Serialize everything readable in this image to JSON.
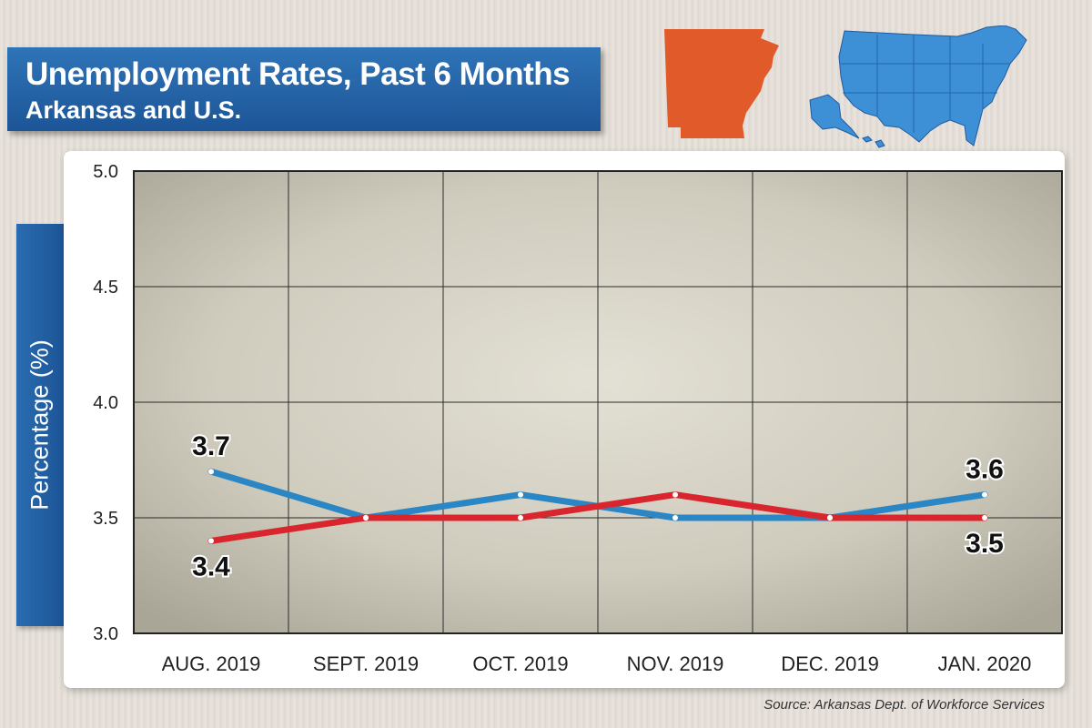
{
  "title": "Unemployment Rates, Past 6 Months",
  "subtitle": "Arkansas and U.S.",
  "source": "Source: Arkansas Dept. of Workforce Services",
  "icons": [
    "arkansas-map-icon",
    "us-map-icon"
  ],
  "colors": {
    "banner": "#1f5c9e",
    "us_series": "#2b86c5",
    "arkansas_series": "#d9262e",
    "arkansas_map": "#e05a2a",
    "us_map": "#3d8fd6"
  },
  "chart_data": {
    "type": "line",
    "title": "Unemployment Rates, Past 6 Months",
    "subtitle": "Arkansas and U.S.",
    "xlabel": "",
    "ylabel": "Percentage (%)",
    "categories": [
      "AUG. 2019",
      "SEPT. 2019",
      "OCT. 2019",
      "NOV. 2019",
      "DEC. 2019",
      "JAN. 2020"
    ],
    "ylim": [
      3.0,
      5.0
    ],
    "yticks": [
      "3.0",
      "3.5",
      "4.0",
      "4.5",
      "5.0"
    ],
    "grid": true,
    "series": [
      {
        "name": "",
        "color": "#2b86c5",
        "values": [
          3.7,
          3.5,
          3.6,
          3.5,
          3.5,
          3.6
        ]
      },
      {
        "name": "",
        "color": "#d9262e",
        "values": [
          3.4,
          3.5,
          3.5,
          3.6,
          3.5,
          3.5
        ]
      }
    ],
    "annotations": [
      {
        "series": 0,
        "index": 0,
        "text": "3.7",
        "position": "above"
      },
      {
        "series": 1,
        "index": 0,
        "text": "3.4",
        "position": "below"
      },
      {
        "series": 0,
        "index": 5,
        "text": "3.6",
        "position": "above"
      },
      {
        "series": 1,
        "index": 5,
        "text": "3.5",
        "position": "below"
      }
    ]
  }
}
